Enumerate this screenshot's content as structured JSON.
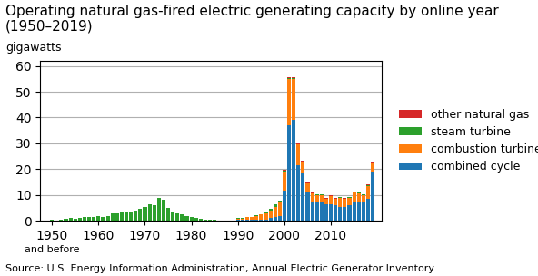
{
  "chart_data": {
    "type": "bar",
    "title": "Operating natural gas-fired electric generating capacity by online year (1950–2019)",
    "subtitle": "gigawatts",
    "annotations": [
      "and before",
      "Source: U.S. Energy Information Administration, Annual Electric Generator Inventory"
    ],
    "stacked": true,
    "grid": "y",
    "legend": "right",
    "x": [
      1950,
      1951,
      1952,
      1953,
      1954,
      1955,
      1956,
      1957,
      1958,
      1959,
      1960,
      1961,
      1962,
      1963,
      1964,
      1965,
      1966,
      1967,
      1968,
      1969,
      1970,
      1971,
      1972,
      1973,
      1974,
      1975,
      1976,
      1977,
      1978,
      1979,
      1980,
      1981,
      1982,
      1983,
      1984,
      1985,
      1986,
      1987,
      1988,
      1989,
      1990,
      1991,
      1992,
      1993,
      1994,
      1995,
      1996,
      1997,
      1998,
      1999,
      2000,
      2001,
      2002,
      2003,
      2004,
      2005,
      2006,
      2007,
      2008,
      2009,
      2010,
      2011,
      2012,
      2013,
      2014,
      2015,
      2016,
      2017,
      2018,
      2019
    ],
    "series": [
      {
        "name": "combined cycle",
        "values": [
          0.0,
          0.0,
          0.0,
          0.0,
          0.0,
          0.0,
          0.0,
          0.0,
          0.0,
          0.0,
          0.0,
          0.0,
          0.0,
          0.0,
          0.0,
          0.0,
          0.0,
          0.0,
          0.0,
          0.0,
          0.0,
          0.0,
          0.0,
          0.0,
          0.0,
          0.0,
          0.0,
          0.0,
          0.0,
          0.0,
          0.0,
          0.0,
          0.0,
          0.0,
          0.0,
          0.0,
          0.0,
          0.0,
          0.0,
          0.0,
          0.3,
          0.3,
          0.5,
          0.5,
          0.5,
          0.5,
          0.5,
          1.0,
          1.5,
          2.0,
          11.5,
          37.0,
          39.0,
          21.5,
          18.5,
          11.0,
          7.5,
          7.5,
          7.0,
          6.5,
          6.5,
          6.0,
          5.5,
          5.5,
          6.0,
          7.0,
          7.0,
          7.5,
          8.5,
          19.0
        ]
      },
      {
        "name": "combustion turbine",
        "values": [
          0.0,
          0.0,
          0.0,
          0.0,
          0.0,
          0.0,
          0.0,
          0.0,
          0.0,
          0.0,
          0.0,
          0.0,
          0.0,
          0.0,
          0.0,
          0.0,
          0.0,
          0.0,
          0.0,
          0.0,
          0.0,
          0.0,
          0.0,
          0.0,
          0.0,
          0.0,
          0.0,
          0.0,
          0.0,
          0.0,
          0.0,
          0.0,
          0.0,
          0.0,
          0.0,
          0.0,
          0.0,
          0.0,
          0.0,
          0.0,
          0.5,
          0.5,
          1.0,
          1.0,
          1.5,
          2.0,
          2.5,
          3.0,
          4.0,
          5.0,
          7.5,
          18.0,
          16.0,
          8.0,
          4.5,
          3.5,
          3.0,
          2.5,
          3.0,
          2.0,
          3.0,
          2.5,
          3.5,
          3.0,
          3.0,
          4.0,
          3.5,
          2.5,
          5.0,
          3.5
        ]
      },
      {
        "name": "steam turbine",
        "values": [
          0.3,
          0.2,
          0.4,
          0.8,
          1.0,
          0.8,
          1.3,
          1.6,
          1.4,
          1.5,
          2.0,
          1.5,
          2.0,
          2.8,
          2.8,
          3.2,
          3.5,
          3.2,
          4.0,
          4.8,
          5.5,
          6.5,
          6.0,
          9.0,
          8.0,
          5.0,
          3.5,
          3.0,
          2.5,
          2.0,
          1.5,
          1.0,
          0.8,
          0.5,
          0.3,
          0.3,
          0.2,
          0.2,
          0.1,
          0.2,
          0.3,
          0.2,
          0.1,
          0.1,
          0.1,
          0.1,
          0.3,
          0.8,
          1.0,
          0.8,
          0.5,
          0.3,
          0.2,
          0.1,
          0.1,
          0.1,
          0.1,
          0.1,
          0.1,
          0.1,
          0.1,
          0.1,
          0.1,
          0.1,
          0.1,
          0.2,
          0.3,
          0.2,
          0.2,
          0.2
        ]
      },
      {
        "name": "other natural gas",
        "values": [
          0.0,
          0.0,
          0.0,
          0.0,
          0.0,
          0.0,
          0.0,
          0.0,
          0.0,
          0.0,
          0.0,
          0.0,
          0.0,
          0.0,
          0.0,
          0.0,
          0.0,
          0.0,
          0.0,
          0.0,
          0.0,
          0.0,
          0.0,
          0.0,
          0.0,
          0.0,
          0.0,
          0.0,
          0.0,
          0.0,
          0.0,
          0.0,
          0.0,
          0.0,
          0.0,
          0.0,
          0.0,
          0.0,
          0.0,
          0.0,
          0.0,
          0.0,
          0.0,
          0.0,
          0.0,
          0.0,
          0.0,
          0.0,
          0.0,
          0.0,
          0.3,
          0.4,
          0.4,
          0.3,
          0.3,
          0.2,
          0.2,
          0.2,
          0.2,
          0.2,
          0.2,
          0.2,
          0.2,
          0.2,
          0.2,
          0.2,
          0.2,
          0.2,
          0.4,
          0.4
        ]
      }
    ],
    "xlim": [
      1947.5,
      2021.0
    ],
    "xticks": [
      1950,
      1960,
      1970,
      1980,
      1990,
      2000,
      2010
    ],
    "ylim": [
      0,
      62
    ],
    "yticks": [
      0,
      10,
      20,
      30,
      40,
      50,
      60
    ]
  }
}
